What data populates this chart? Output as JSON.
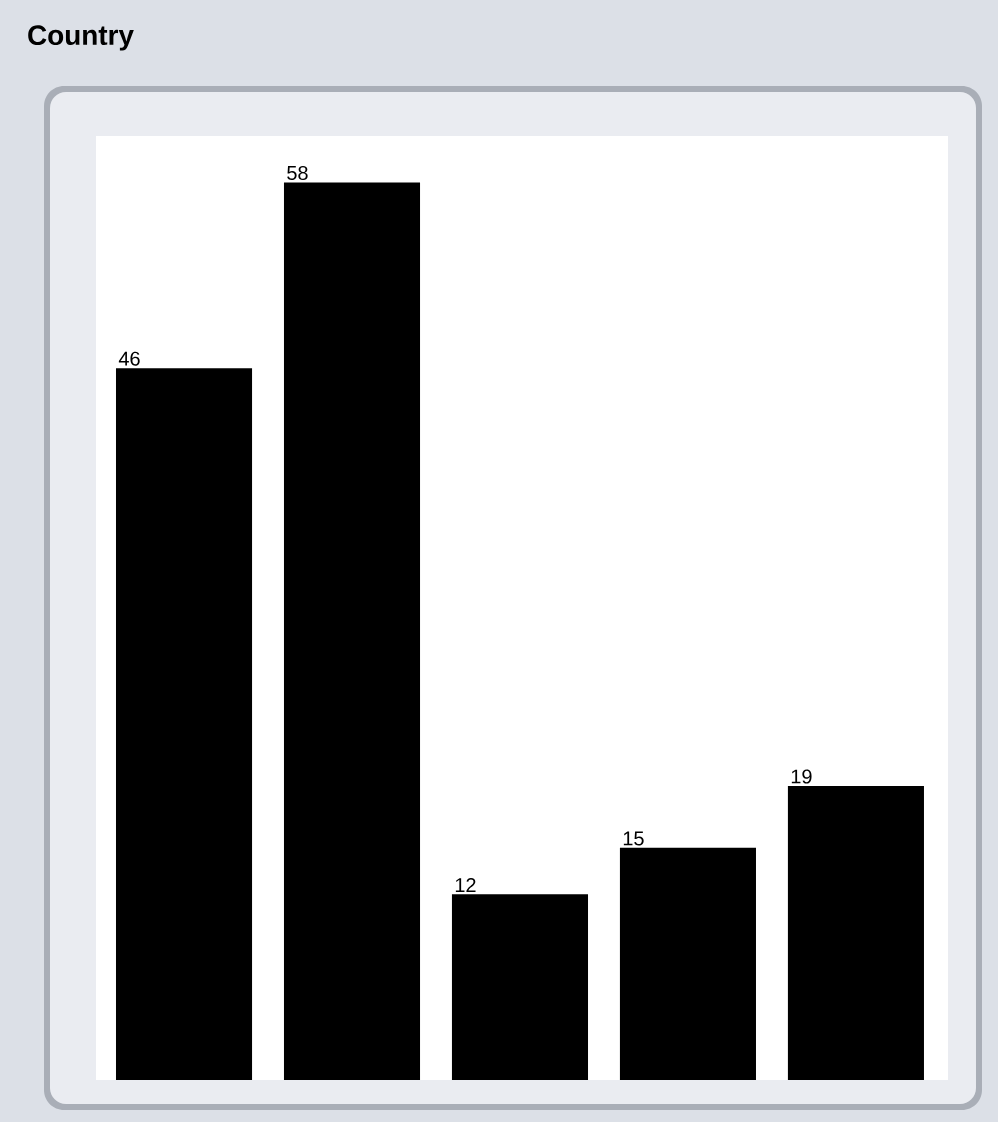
{
  "chart_data": {
    "type": "bar",
    "title": "Country",
    "categories": [
      null,
      null,
      null,
      null,
      null
    ],
    "values": [
      46,
      58,
      12,
      15,
      19
    ],
    "color": "#000000",
    "ylim": [
      0,
      61
    ],
    "data_labels": true
  }
}
